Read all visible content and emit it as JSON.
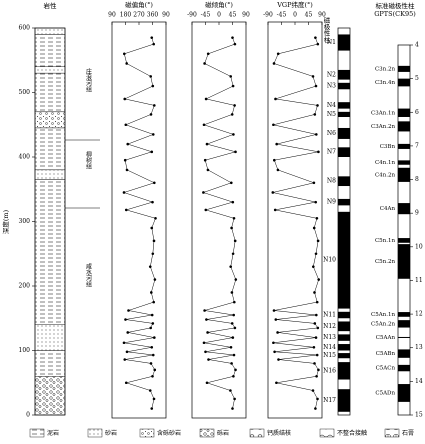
{
  "chart_data": {
    "type": "stratigraphy",
    "lithology_title": "岩性",
    "depth_label": "深度(m)",
    "ylim": [
      0,
      600
    ],
    "yticks": [
      0,
      100,
      200,
      300,
      400,
      500,
      600
    ],
    "formations": [
      "庄浪河组",
      "柳树组",
      "咸水河组"
    ],
    "legend": [
      "泥岩",
      "砂岩",
      "含砾砂岩",
      "砾岩",
      "钙质结核",
      "不整合接触",
      "石膏"
    ],
    "lithology": [
      {
        "top": 600,
        "bottom": 590,
        "rock": "砂岩"
      },
      {
        "top": 590,
        "bottom": 540,
        "rock": "泥岩"
      },
      {
        "top": 540,
        "bottom": 530,
        "rock": "砂岩"
      },
      {
        "top": 530,
        "bottom": 470,
        "rock": "泥岩"
      },
      {
        "top": 470,
        "bottom": 445,
        "rock": "含砾砂岩"
      },
      {
        "top": 445,
        "bottom": 380,
        "rock": "泥岩"
      },
      {
        "top": 380,
        "bottom": 365,
        "rock": "砂岩"
      },
      {
        "top": 365,
        "bottom": 140,
        "rock": "泥岩"
      },
      {
        "top": 140,
        "bottom": 100,
        "rock": "砂岩"
      },
      {
        "top": 100,
        "bottom": 60,
        "rock": "泥岩"
      },
      {
        "top": 60,
        "bottom": 0,
        "rock": "砾岩"
      }
    ],
    "panels": [
      {
        "title": "磁偏角(°)",
        "key": "declination",
        "xlim": [
          90,
          450
        ],
        "xticks": [
          90,
          180,
          270,
          360,
          {
            "value": 450,
            "label": "90"
          }
        ]
      },
      {
        "title": "磁倾角(°)",
        "key": "inclination",
        "xlim": [
          -90,
          90
        ],
        "xticks": [
          -90,
          -45,
          0,
          45,
          90
        ]
      },
      {
        "title": "VGP纬度(°)",
        "key": "vgp",
        "xlim": [
          -90,
          90
        ],
        "xticks": [
          -90,
          -45,
          0,
          45,
          90
        ]
      }
    ],
    "depth": [
      10,
      25,
      38,
      50,
      60,
      70,
      80,
      86,
      93,
      98,
      105,
      112,
      120,
      128,
      135,
      142,
      148,
      155,
      162,
      175,
      190,
      210,
      230,
      250,
      270,
      290,
      305,
      318,
      330,
      345,
      360,
      380,
      395,
      408,
      420,
      435,
      450,
      466,
      480,
      490,
      510,
      525,
      545,
      560,
      575,
      585
    ],
    "declination": [
      355,
      370,
      345,
      185,
      360,
      375,
      350,
      175,
      365,
      190,
      355,
      170,
      372,
      195,
      348,
      362,
      180,
      358,
      200,
      368,
      352,
      376,
      345,
      362,
      370,
      355,
      380,
      185,
      360,
      170,
      372,
      190,
      178,
      355,
      195,
      365,
      182,
      350,
      372,
      175,
      362,
      348,
      188,
      172,
      368,
      355
    ],
    "inclination": [
      45,
      52,
      38,
      -40,
      48,
      55,
      42,
      -35,
      50,
      -45,
      40,
      -50,
      46,
      -38,
      53,
      44,
      -42,
      49,
      -48,
      51,
      43,
      56,
      39,
      47,
      54,
      42,
      50,
      -44,
      46,
      -52,
      41,
      -37,
      -46,
      55,
      -40,
      48,
      -50,
      44,
      52,
      -43,
      47,
      39,
      -48,
      -36,
      53,
      45
    ],
    "vgp": [
      68,
      75,
      60,
      -62,
      72,
      78,
      65,
      -55,
      74,
      -68,
      63,
      -72,
      70,
      -58,
      76,
      66,
      -64,
      71,
      -70,
      74,
      65,
      79,
      61,
      70,
      77,
      64,
      73,
      -66,
      69,
      -74,
      63,
      -57,
      -69,
      78,
      -61,
      71,
      -72,
      66,
      75,
      -65,
      70,
      60,
      -70,
      -56,
      76,
      68
    ],
    "polarity_title": "磁极性柱",
    "polarity": [
      {
        "name": "N1",
        "top": 590,
        "bottom": 565
      },
      {
        "name": "N2",
        "top": 535,
        "bottom": 520
      },
      {
        "name": "N3",
        "top": 515,
        "bottom": 505
      },
      {
        "name": "N4",
        "top": 485,
        "bottom": 475
      },
      {
        "name": "N5",
        "top": 470,
        "bottom": 462
      },
      {
        "name": "N6",
        "top": 445,
        "bottom": 428
      },
      {
        "name": "N7",
        "top": 415,
        "bottom": 400
      },
      {
        "name": "N8",
        "top": 370,
        "bottom": 355
      },
      {
        "name": "N9",
        "top": 335,
        "bottom": 325
      },
      {
        "name": "N10",
        "top": 315,
        "bottom": 165
      },
      {
        "name": "N11",
        "top": 160,
        "bottom": 150
      },
      {
        "name": "N12",
        "top": 145,
        "bottom": 130
      },
      {
        "name": "N13",
        "top": 125,
        "bottom": 115
      },
      {
        "name": "N14",
        "top": 110,
        "bottom": 100
      },
      {
        "name": "N15",
        "top": 96,
        "bottom": 88
      },
      {
        "name": "N16",
        "top": 82,
        "bottom": 55
      },
      {
        "name": "N17",
        "top": 40,
        "bottom": 5
      }
    ],
    "gpts_title": "标准磁极性柱",
    "gpts_subtitle": "GPTS(CK95)",
    "agelim": [
      4,
      15
    ],
    "ageticks": [
      4,
      5,
      6,
      7,
      8,
      9,
      10,
      11,
      12,
      13,
      14,
      15
    ],
    "chrons": [
      {
        "name": "C3n.2n",
        "young": 4.62,
        "old": 4.8
      },
      {
        "name": "C3n.4n",
        "young": 5.0,
        "old": 5.23
      },
      {
        "name": "C3An.1n",
        "young": 5.89,
        "old": 6.14
      },
      {
        "name": "C3An.2n",
        "young": 6.27,
        "old": 6.57
      },
      {
        "name": "C3Bn",
        "young": 6.94,
        "old": 7.09
      },
      {
        "name": "C4n.1n",
        "young": 7.43,
        "old": 7.56
      },
      {
        "name": "C4n.2n",
        "young": 7.65,
        "old": 8.07
      },
      {
        "name": "C4An",
        "young": 8.7,
        "old": 9.03
      },
      {
        "name": "C5n.1n",
        "young": 9.74,
        "old": 9.88
      },
      {
        "name": "C5n.2n",
        "young": 9.92,
        "old": 10.95
      },
      {
        "name": "C5An.1n",
        "young": 11.94,
        "old": 12.08
      },
      {
        "name": "C5An.2n",
        "young": 12.18,
        "old": 12.4
      },
      {
        "name": "C5AAn",
        "young": 12.68,
        "old": 12.71
      },
      {
        "name": "C5ABn",
        "young": 13.05,
        "old": 13.3
      },
      {
        "name": "C5ACn",
        "young": 13.51,
        "old": 13.7
      },
      {
        "name": "C5ADn",
        "young": 14.08,
        "old": 14.61
      }
    ]
  }
}
